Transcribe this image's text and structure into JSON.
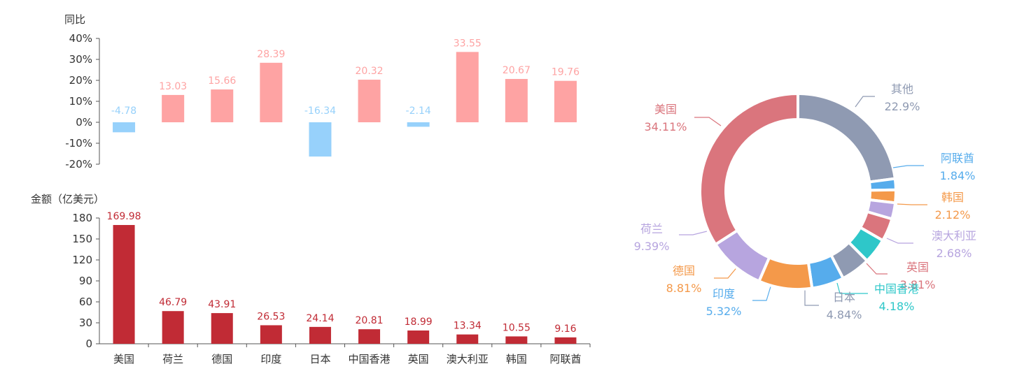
{
  "chart_data": [
    {
      "type": "bar",
      "ylabel": "同比",
      "ylim": [
        -20,
        40
      ],
      "yticks": [
        "40%",
        "30%",
        "20%",
        "10%",
        "0%",
        "-10%",
        "-20%"
      ],
      "ytick_values": [
        40,
        30,
        20,
        10,
        0,
        -10,
        -20
      ],
      "categories": [
        "美国",
        "荷兰",
        "德国",
        "印度",
        "日本",
        "中国香港",
        "英国",
        "澳大利亚",
        "韩国",
        "阿联酋"
      ],
      "values": [
        -4.78,
        13.03,
        15.66,
        28.39,
        -16.34,
        20.32,
        -2.14,
        33.55,
        20.67,
        19.76
      ],
      "labels": [
        "-4.78",
        "13.03",
        "15.66",
        "28.39",
        "-16.34",
        "20.32",
        "-2.14",
        "33.55",
        "20.67",
        "19.76"
      ],
      "positive_color": "#fea3a3",
      "negative_color": "#97d1fb",
      "grid": false
    },
    {
      "type": "bar",
      "ylabel": "金额（亿美元）",
      "ylim": [
        0,
        180
      ],
      "yticks": [
        "180",
        "150",
        "120",
        "90",
        "60",
        "30",
        "0"
      ],
      "ytick_values": [
        180,
        150,
        120,
        90,
        60,
        30,
        0
      ],
      "categories": [
        "美国",
        "荷兰",
        "德国",
        "印度",
        "日本",
        "中国香港",
        "英国",
        "澳大利亚",
        "韩国",
        "阿联酋"
      ],
      "values": [
        169.98,
        46.79,
        43.91,
        26.53,
        24.14,
        20.81,
        18.99,
        13.34,
        10.55,
        9.16
      ],
      "labels": [
        "169.98",
        "46.79",
        "43.91",
        "26.53",
        "24.14",
        "20.81",
        "18.99",
        "13.34",
        "10.55",
        "9.16"
      ],
      "color": "#c12b35",
      "grid": false
    },
    {
      "type": "pie",
      "donut": true,
      "slices": [
        {
          "name": "其他",
          "value": 22.9,
          "label": "22.9%",
          "color": "#8f9ab2"
        },
        {
          "name": "阿联酋",
          "value": 1.84,
          "label": "1.84%",
          "color": "#56acec"
        },
        {
          "name": "韩国",
          "value": 2.12,
          "label": "2.12%",
          "color": "#f4994a"
        },
        {
          "name": "澳大利亚",
          "value": 2.68,
          "label": "2.68%",
          "color": "#b7a5df"
        },
        {
          "name": "英国",
          "value": 3.81,
          "label": "3.81%",
          "color": "#da757d"
        },
        {
          "name": "中国香港",
          "value": 4.18,
          "label": "4.18%",
          "color": "#2ec7c9"
        },
        {
          "name": "日本",
          "value": 4.84,
          "label": "4.84%",
          "color": "#8f9ab2"
        },
        {
          "name": "印度",
          "value": 5.32,
          "label": "5.32%",
          "color": "#56acec"
        },
        {
          "name": "德国",
          "value": 8.81,
          "label": "8.81%",
          "color": "#f4994a"
        },
        {
          "name": "荷兰",
          "value": 9.39,
          "label": "9.39%",
          "color": "#b7a5df"
        },
        {
          "name": "美国",
          "value": 34.11,
          "label": "34.11%",
          "color": "#da757d"
        }
      ]
    }
  ],
  "style": {
    "axis_color": "#555555",
    "tick_text_color": "#333333"
  }
}
